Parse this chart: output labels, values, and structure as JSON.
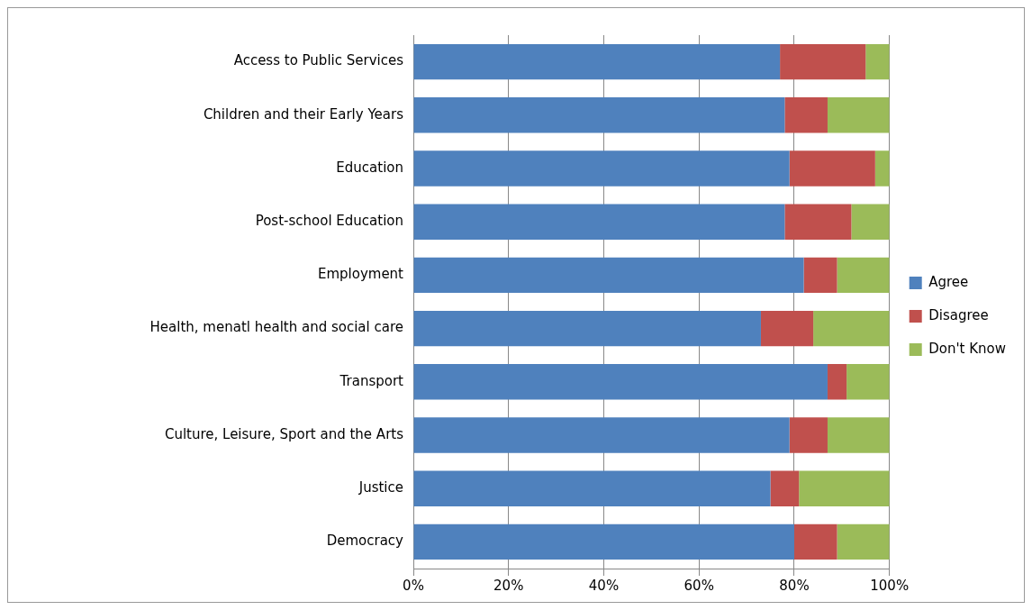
{
  "chart_data": {
    "type": "bar",
    "orientation": "horizontal",
    "stacked": true,
    "categories": [
      "Access to Public Services",
      "Children and their Early Years",
      "Education",
      "Post-school Education",
      "Employment",
      "Health, menatl health and social care",
      "Transport",
      "Culture, Leisure, Sport and the Arts",
      "Justice",
      "Democracy"
    ],
    "series": [
      {
        "name": "Agree",
        "color": "#4f81bd",
        "values": [
          77,
          78,
          79,
          78,
          82,
          73,
          87,
          79,
          75,
          80
        ]
      },
      {
        "name": "Disagree",
        "color": "#c0504d",
        "values": [
          18,
          9,
          18,
          14,
          7,
          11,
          4,
          8,
          6,
          9
        ]
      },
      {
        "name": "Don't Know",
        "color": "#9bbb59",
        "values": [
          5,
          13,
          3,
          8,
          11,
          16,
          9,
          13,
          19,
          11
        ]
      }
    ],
    "xlim": [
      0,
      100
    ],
    "xticks": [
      {
        "value": 0,
        "label": "0%"
      },
      {
        "value": 20,
        "label": "20%"
      },
      {
        "value": 40,
        "label": "40%"
      },
      {
        "value": 60,
        "label": "60%"
      },
      {
        "value": 80,
        "label": "80%"
      },
      {
        "value": 100,
        "label": "100%"
      }
    ],
    "grid": "x",
    "legend": "right"
  }
}
